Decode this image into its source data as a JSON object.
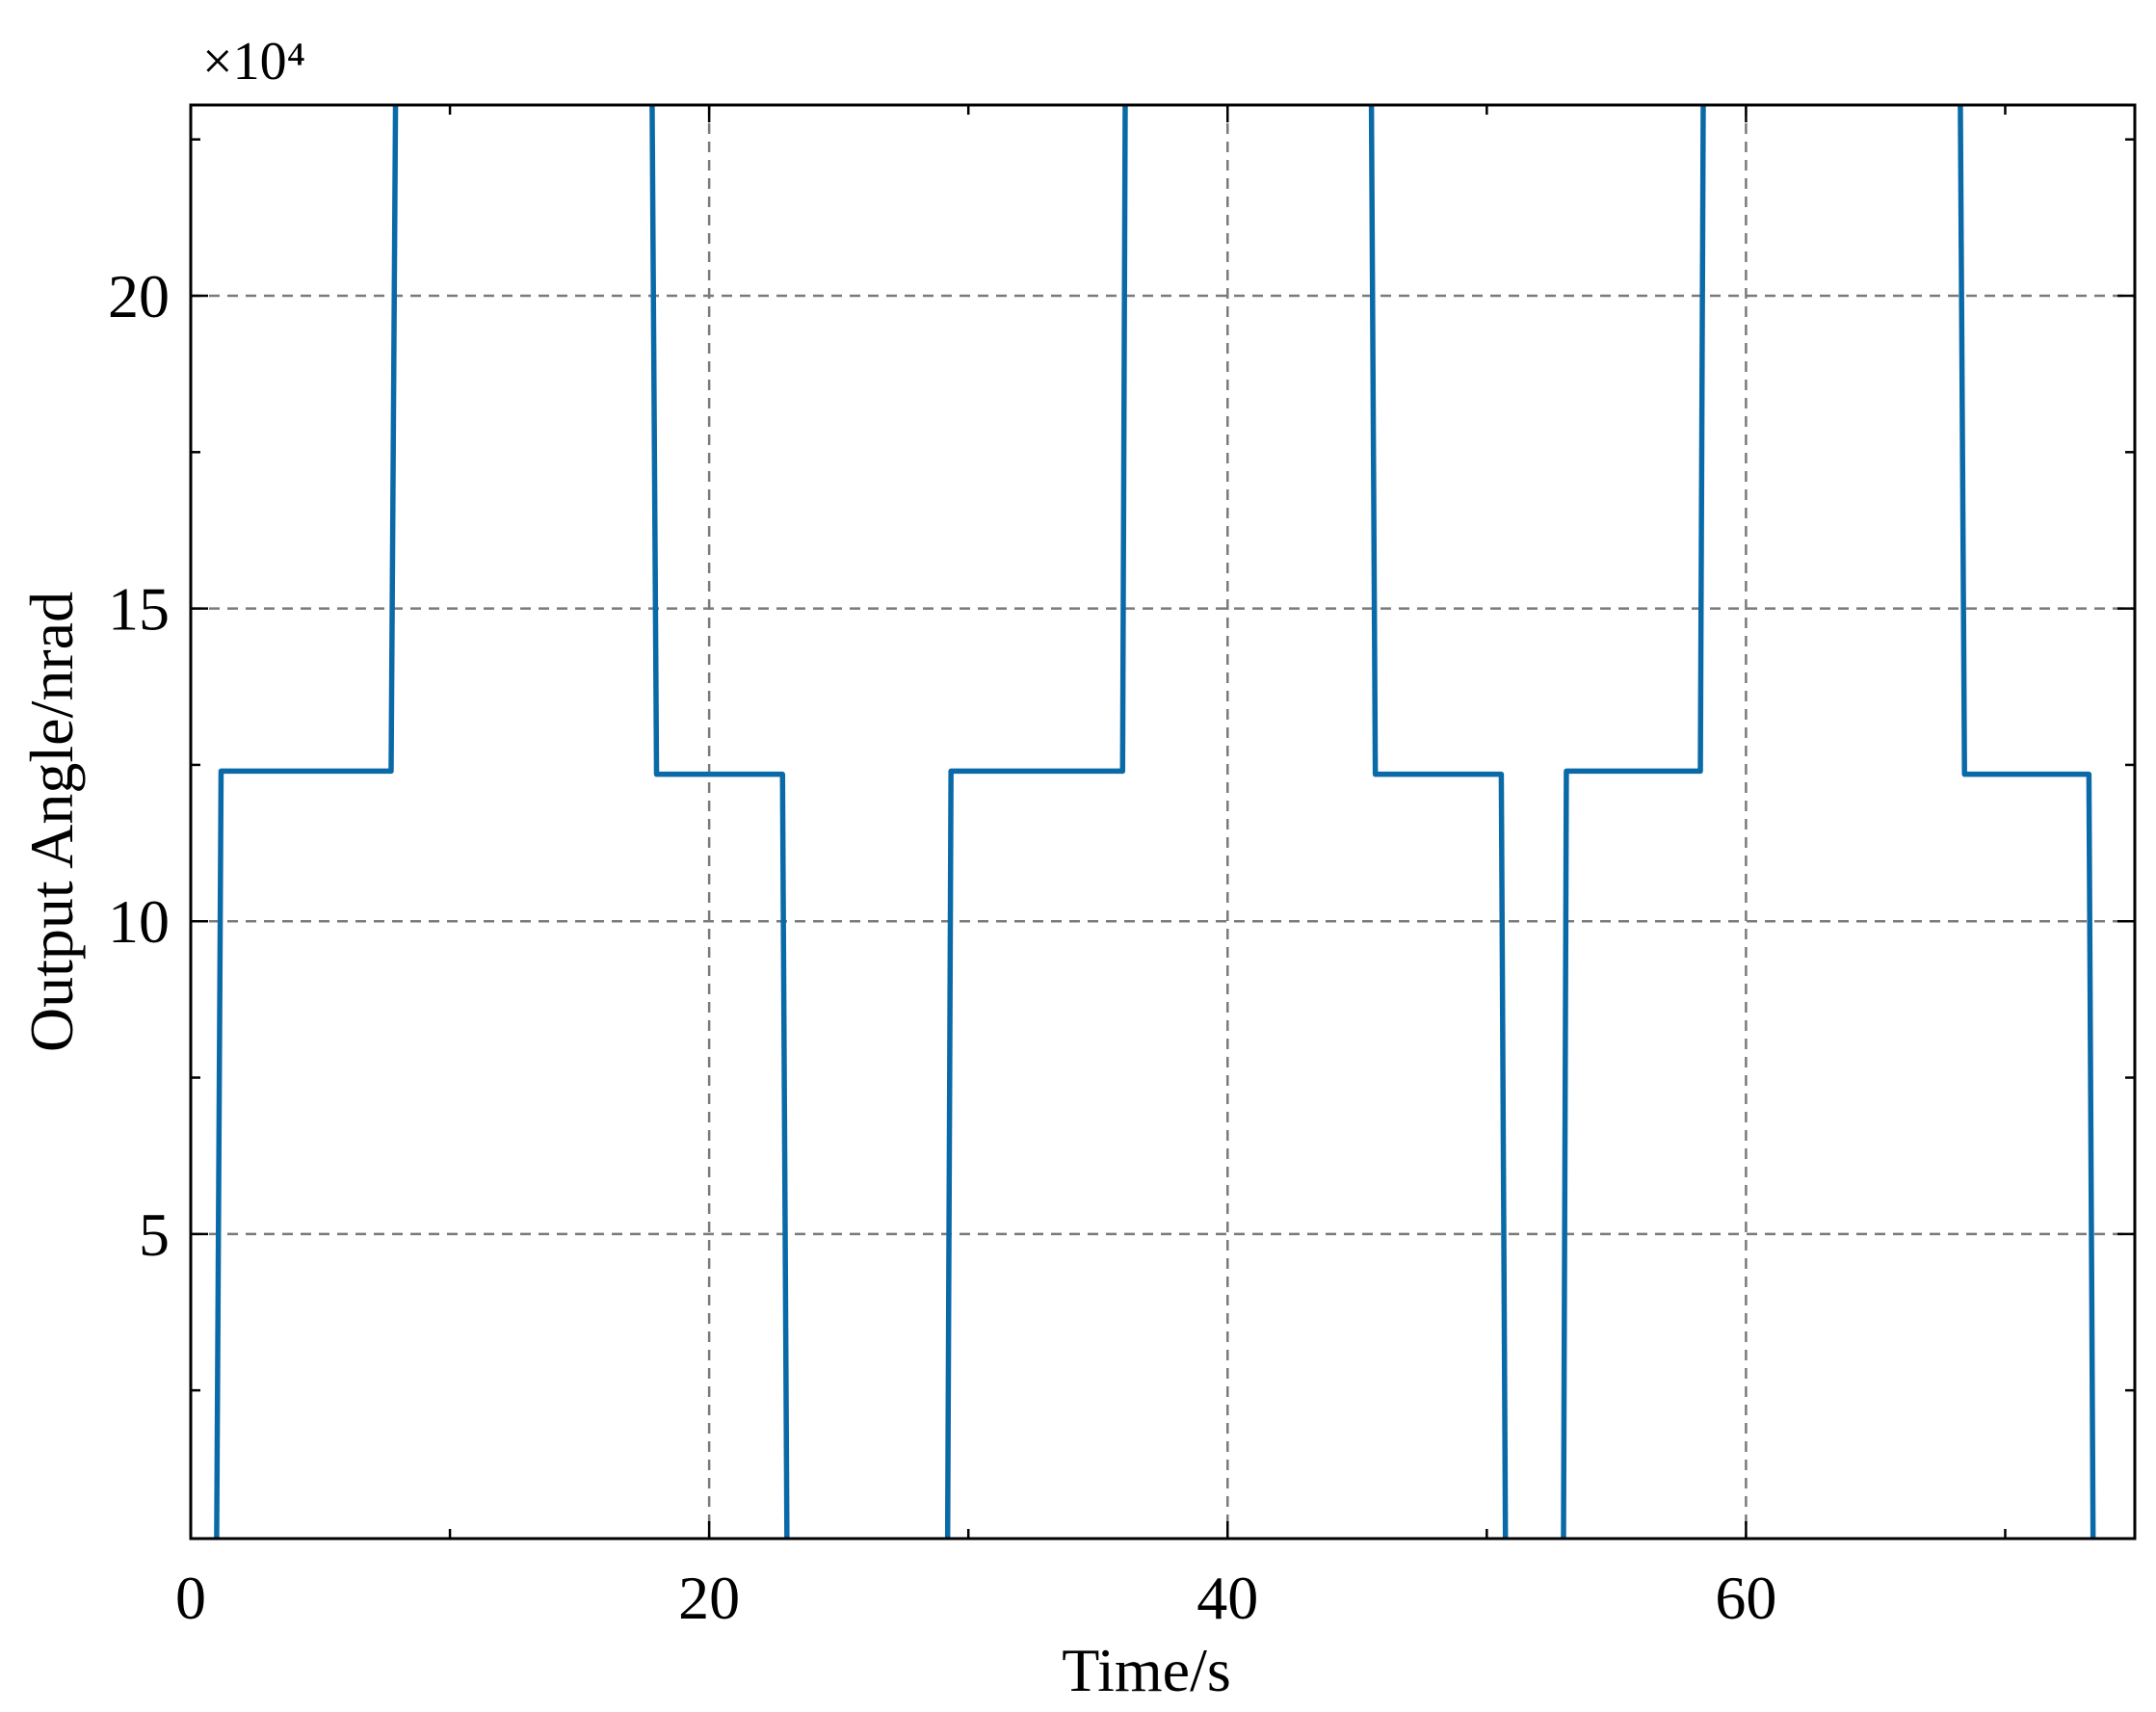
{
  "chart_data": {
    "type": "line",
    "xlabel": "Time/s",
    "ylabel": "Output Angle/nrad",
    "y_exponent": "×10⁴",
    "xlim": [
      0,
      75
    ],
    "ylim": [
      0.13,
      23.05
    ],
    "xticks": [
      0,
      20,
      40,
      60
    ],
    "yticks": [
      5,
      10,
      15,
      20
    ],
    "xminorticks": [
      10,
      30,
      50,
      70
    ],
    "yminorticks": [
      2.5,
      7.5,
      12.5,
      17.5,
      22.5
    ],
    "grid": true,
    "x": [
      1.0,
      1.17,
      7.73,
      7.9,
      12.8,
      17.8,
      17.97,
      22.83,
      23.0,
      26.1,
      29.2,
      29.33,
      35.95,
      36.05,
      40.8,
      45.55,
      45.7,
      50.56,
      50.72,
      51.8,
      52.96,
      53.07,
      58.24,
      58.35,
      63.3,
      68.27,
      68.43,
      73.23,
      73.39
    ],
    "series": [
      {
        "color": "#0a6aa8",
        "values": [
          0.13,
          12.4,
          12.4,
          23.05,
          null,
          23.05,
          12.35,
          12.35,
          0.13,
          null,
          0.13,
          12.4,
          12.4,
          23.05,
          null,
          23.05,
          12.35,
          12.35,
          0.13,
          null,
          0.13,
          12.4,
          12.4,
          23.05,
          null,
          23.05,
          12.35,
          12.35,
          0.13
        ]
      }
    ]
  }
}
